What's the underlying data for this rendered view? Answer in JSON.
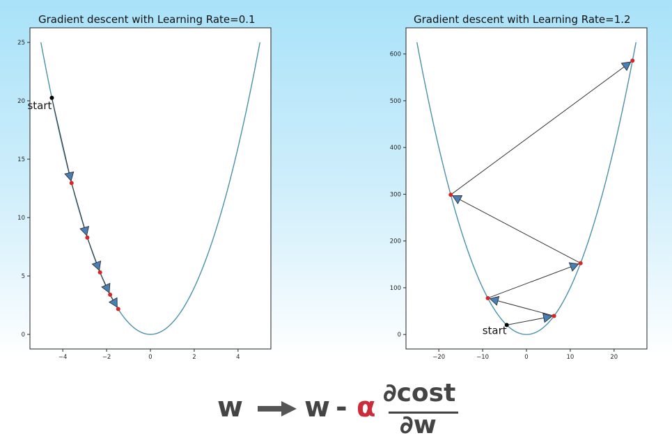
{
  "chart_data": [
    {
      "type": "line",
      "title": "Gradient descent with Learning Rate=0.1",
      "xlim": [
        -5.5,
        5.5
      ],
      "ylim": [
        -1.25,
        26.25
      ],
      "xticks": [
        -4,
        -2,
        0,
        2,
        4
      ],
      "yticks": [
        0,
        5,
        10,
        15,
        20,
        25
      ],
      "xtick_labels": [
        "−4",
        "−2",
        "0",
        "2",
        "4"
      ],
      "ytick_labels": [
        "0",
        "5",
        "10",
        "15",
        "20",
        "25"
      ],
      "curve": {
        "function": "y = x^2",
        "x_range": [
          -5,
          5
        ],
        "color": "#4a90a8"
      },
      "start": {
        "x": -4.5,
        "y": 20.25,
        "label": "start"
      },
      "steps": [
        {
          "x": -3.6,
          "y": 12.96
        },
        {
          "x": -2.88,
          "y": 8.29
        },
        {
          "x": -2.3,
          "y": 5.31
        },
        {
          "x": -1.84,
          "y": 3.4
        },
        {
          "x": -1.47,
          "y": 2.17
        }
      ]
    },
    {
      "type": "line",
      "title": "Gradient descent with Learning Rate=1.2",
      "xlim": [
        -27.5,
        27.5
      ],
      "ylim": [
        -31,
        656
      ],
      "xticks": [
        -20,
        -10,
        0,
        10,
        20
      ],
      "yticks": [
        0,
        100,
        200,
        300,
        400,
        500,
        600
      ],
      "xtick_labels": [
        "−20",
        "−10",
        "0",
        "10",
        "20"
      ],
      "ytick_labels": [
        "0",
        "100",
        "200",
        "300",
        "400",
        "500",
        "600"
      ],
      "curve": {
        "function": "y = x^2",
        "x_range": [
          -25,
          25
        ],
        "color": "#4a90a8"
      },
      "start": {
        "x": -4.5,
        "y": 20.25,
        "label": "start"
      },
      "steps": [
        {
          "x": 6.3,
          "y": 39.69
        },
        {
          "x": -8.82,
          "y": 77.79
        },
        {
          "x": 12.35,
          "y": 152.47
        },
        {
          "x": -17.29,
          "y": 298.84
        },
        {
          "x": 24.2,
          "y": 585.73
        }
      ]
    }
  ],
  "formula": {
    "lhs": "w",
    "rhs_w": "w",
    "minus": "-",
    "alpha": "α",
    "numerator": "∂cost",
    "denominator": "∂w"
  },
  "colors": {
    "curve": "#4a90a8",
    "arrow_fill": "#4a7fb5",
    "step_point": "#d62728",
    "start_point": "#000000",
    "alpha": "#cc2b3a"
  }
}
